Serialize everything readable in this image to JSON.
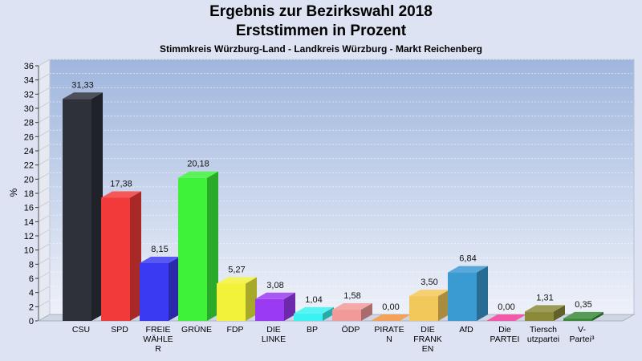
{
  "chart_data": {
    "type": "bar",
    "title": "Ergebnis zur Bezirkswahl 2018",
    "subtitle": "Erststimmen in Prozent",
    "caption": "Stimmkreis Würzburg-Land - Landkreis Würzburg - Markt Reichenberg",
    "ylabel": "%",
    "ylim": [
      0,
      36
    ],
    "yticks": [
      0,
      2,
      4,
      6,
      8,
      10,
      12,
      14,
      16,
      18,
      20,
      22,
      24,
      26,
      28,
      30,
      32,
      34,
      36
    ],
    "grid": true,
    "categories": [
      [
        "CSU"
      ],
      [
        "SPD"
      ],
      [
        "FREIE",
        "WÄHLE",
        "R"
      ],
      [
        "GRÜNE"
      ],
      [
        "FDP"
      ],
      [
        "DIE",
        "LINKE"
      ],
      [
        "BP"
      ],
      [
        "ÖDP"
      ],
      [
        "PIRATE",
        "N"
      ],
      [
        "DIE",
        "FRANK",
        "EN"
      ],
      [
        "AfD"
      ],
      [
        "Die",
        "PARTEI"
      ],
      [
        "Tiersch",
        "utzpartei"
      ],
      [
        "V-",
        "Partei³"
      ]
    ],
    "values": [
      31.33,
      17.38,
      8.15,
      20.18,
      5.27,
      3.08,
      1.04,
      1.58,
      0.0,
      3.5,
      6.84,
      0.0,
      1.31,
      0.35
    ],
    "value_labels": [
      "31,33",
      "17,38",
      "8,15",
      "20,18",
      "5,27",
      "3,08",
      "1,04",
      "1,58",
      "0,00",
      "3,50",
      "6,84",
      "0,00",
      "1,31",
      "0,35"
    ],
    "colors": [
      "#2e313a",
      "#f23a3a",
      "#3a3af2",
      "#3ef23a",
      "#f2f23a",
      "#9a3af2",
      "#3af2f2",
      "#f29a9a",
      "#f2923a",
      "#f2c85a",
      "#3a9ad2",
      "#f23a9a",
      "#8a8a3a",
      "#3a8a3a"
    ]
  }
}
